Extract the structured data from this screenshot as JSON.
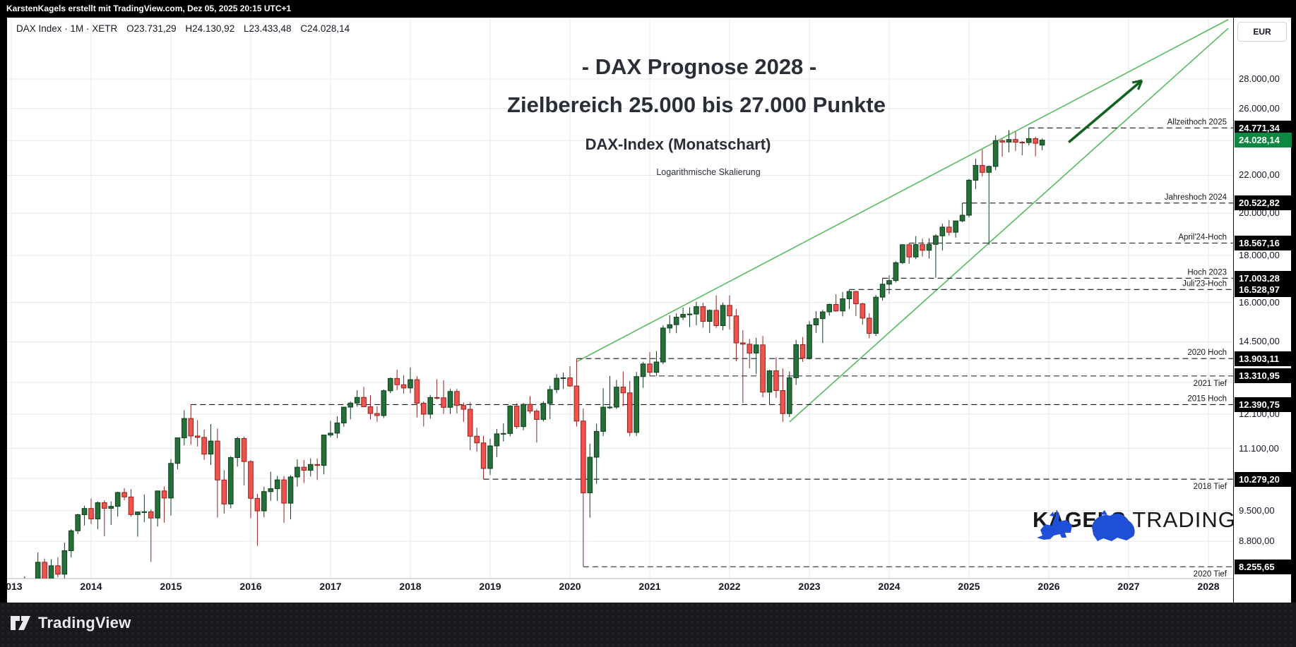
{
  "top_bar": {
    "attribution": "KarstenKagels erstellt mit TradingView.com, Dez 05, 2025 20:15 UTC+1"
  },
  "legend": {
    "symbol_line": "DAX Index · 1M · XETR",
    "open": "O23.731,29",
    "high": "H24.130,92",
    "low": "L23.433,48",
    "close": "C24.028,14"
  },
  "titles": {
    "main": "- DAX Prognose 2028 -",
    "target": "Zielbereich 25.000 bis 27.000 Punkte",
    "instrument": "DAX-Index (Monatschart)",
    "scale_note": "Logarithmische Skalierung"
  },
  "watermark": {
    "brand_bold": "KAGELS",
    "brand_light": "TRADING",
    "logo_blue": "#1e4fd6"
  },
  "footer": {
    "brand": "TradingView"
  },
  "price_axis": {
    "currency": "EUR",
    "ticks": [
      {
        "label": "28.000,00",
        "price": 28000
      },
      {
        "label": "26.000,00",
        "price": 26000
      },
      {
        "label": "22.000,00",
        "price": 22000
      },
      {
        "label": "20.000,00",
        "price": 20000
      },
      {
        "label": "18.000,00",
        "price": 18000
      },
      {
        "label": "16.000,00",
        "price": 16000
      },
      {
        "label": "14.500,00",
        "price": 14500
      },
      {
        "label": "12.100,00",
        "price": 12100
      },
      {
        "label": "11.100,00",
        "price": 11100
      },
      {
        "label": "9.500,00",
        "price": 9500
      },
      {
        "label": "8.800,00",
        "price": 8800
      }
    ],
    "hidden_grid_prices": [
      24000,
      13100,
      10300
    ],
    "badges": [
      {
        "label": "24.771,34",
        "price": 24771.34,
        "type": "black"
      },
      {
        "label": "24.028,14",
        "price": 24028.14,
        "type": "green"
      },
      {
        "label": "20.522,82",
        "price": 20522.82,
        "type": "black"
      },
      {
        "label": "18.567,16",
        "price": 18567.16,
        "type": "black"
      },
      {
        "label": "17.003,28",
        "price": 17003.28,
        "type": "black"
      },
      {
        "label": "16.528,97",
        "price": 16528.97,
        "type": "black"
      },
      {
        "label": "13.903,11",
        "price": 13903.11,
        "type": "black"
      },
      {
        "label": "13.310,95",
        "price": 13310.95,
        "type": "black"
      },
      {
        "label": "12.390,75",
        "price": 12390.75,
        "type": "black"
      },
      {
        "label": "10.279,20",
        "price": 10279.2,
        "type": "black"
      },
      {
        "label": "8.255,65",
        "price": 8255.65,
        "type": "black"
      }
    ]
  },
  "x_axis": {
    "years": [
      "2013",
      "2014",
      "2015",
      "2016",
      "2017",
      "2018",
      "2019",
      "2020",
      "2021",
      "2022",
      "2023",
      "2024",
      "2025",
      "2026",
      "2027",
      "2028"
    ]
  },
  "colors": {
    "up": "#256f38",
    "up_border": "#103c1e",
    "down": "#f0524d",
    "down_border": "#8e241f",
    "grid": "#e6e8ec",
    "level": "#15171c",
    "trendline": "#56bb5e",
    "arrow": "#12621f",
    "badge_black": "#000000",
    "badge_green": "#0d8742"
  },
  "chart_data": {
    "type": "candlestick",
    "title": "DAX Prognose 2028 - Zielbereich 25.000 bis 27.000 Punkte",
    "symbol": "DAX Index",
    "interval": "1M",
    "exchange": "XETR",
    "currency": "EUR",
    "scale": "logarithmic",
    "start_month": "2013-01",
    "visible_price_range": [
      8013,
      28600
    ],
    "last_bar_ohlc": {
      "open": 23731.29,
      "high": 24130.92,
      "low": 23433.48,
      "close": 24028.14
    },
    "candles": [
      [
        7612,
        7872,
        7418,
        7776
      ],
      [
        7776,
        7940,
        7610,
        7741
      ],
      [
        7741,
        8058,
        7590,
        7795
      ],
      [
        7795,
        7965,
        7420,
        7914
      ],
      [
        7914,
        8557,
        7860,
        8349
      ],
      [
        8349,
        8425,
        7655,
        7959
      ],
      [
        7959,
        8410,
        7806,
        8276
      ],
      [
        8276,
        8456,
        8042,
        8103
      ],
      [
        8103,
        8770,
        8021,
        8594
      ],
      [
        8594,
        9070,
        8450,
        9034
      ],
      [
        9034,
        9425,
        8960,
        9405
      ],
      [
        9405,
        9620,
        9155,
        9552
      ],
      [
        9552,
        9794,
        9189,
        9306
      ],
      [
        9306,
        9720,
        9070,
        9692
      ],
      [
        9692,
        9750,
        8910,
        9556
      ],
      [
        9556,
        9721,
        9166,
        9603
      ],
      [
        9603,
        9960,
        9361,
        9943
      ],
      [
        9943,
        10051,
        9752,
        9833
      ],
      [
        9833,
        10029,
        9361,
        9407
      ],
      [
        9407,
        9480,
        8903,
        9470
      ],
      [
        9470,
        9891,
        9234,
        9474
      ],
      [
        9474,
        9529,
        8355,
        9327
      ],
      [
        9327,
        9991,
        9130,
        9981
      ],
      [
        9981,
        10093,
        9220,
        9806
      ],
      [
        9806,
        10810,
        9383,
        10694
      ],
      [
        10694,
        11402,
        10538,
        11401
      ],
      [
        11401,
        12219,
        11189,
        11966
      ],
      [
        11966,
        12390,
        11205,
        11454
      ],
      [
        11454,
        11920,
        11158,
        11413
      ],
      [
        11413,
        11637,
        10789,
        10945
      ],
      [
        10945,
        11802,
        10653,
        11309
      ],
      [
        11309,
        11670,
        9338,
        10259
      ],
      [
        10259,
        10515,
        9428,
        9660
      ],
      [
        9660,
        10887,
        9556,
        10850
      ],
      [
        10850,
        11430,
        10610,
        11382
      ],
      [
        11382,
        11431,
        10123,
        10743
      ],
      [
        10743,
        10780,
        9325,
        9798
      ],
      [
        9798,
        9908,
        8699,
        9495
      ],
      [
        9495,
        10087,
        9347,
        9965
      ],
      [
        9965,
        10474,
        9738,
        10038
      ],
      [
        10038,
        10365,
        9737,
        10262
      ],
      [
        10262,
        10365,
        9214,
        9680
      ],
      [
        9680,
        10383,
        9295,
        10337
      ],
      [
        10337,
        10802,
        10092,
        10592
      ],
      [
        10592,
        10786,
        10182,
        10511
      ],
      [
        10511,
        10830,
        10349,
        10665
      ],
      [
        10665,
        10827,
        10259,
        10640
      ],
      [
        10640,
        11490,
        10404,
        11481
      ],
      [
        11481,
        11893,
        11415,
        11535
      ],
      [
        11535,
        12031,
        11393,
        11834
      ],
      [
        11834,
        12313,
        11722,
        12312
      ],
      [
        12312,
        12486,
        11941,
        12438
      ],
      [
        12438,
        12842,
        12326,
        12615
      ],
      [
        12615,
        12952,
        12319,
        12325
      ],
      [
        12325,
        12676,
        11934,
        12118
      ],
      [
        12118,
        12336,
        11869,
        12055
      ],
      [
        12055,
        12871,
        11981,
        12828
      ],
      [
        12828,
        13255,
        12750,
        13229
      ],
      [
        13229,
        13525,
        12848,
        13023
      ],
      [
        13023,
        13338,
        12738,
        12917
      ],
      [
        12917,
        13596,
        12746,
        13189
      ],
      [
        13189,
        13302,
        12003,
        12435
      ],
      [
        12435,
        12489,
        11727,
        12096
      ],
      [
        12096,
        12696,
        11963,
        12612
      ],
      [
        12612,
        13204,
        12548,
        12604
      ],
      [
        12604,
        13170,
        12104,
        12306
      ],
      [
        12306,
        12886,
        12106,
        12805
      ],
      [
        12805,
        12887,
        12120,
        12364
      ],
      [
        12364,
        12458,
        11865,
        12246
      ],
      [
        12246,
        12462,
        11051,
        11447
      ],
      [
        11447,
        11689,
        11009,
        11257
      ],
      [
        11257,
        11457,
        10279,
        10559
      ],
      [
        10559,
        11371,
        10387,
        11173
      ],
      [
        11173,
        11658,
        10864,
        11515
      ],
      [
        11515,
        11823,
        11299,
        11526
      ],
      [
        11526,
        12375,
        11446,
        12344
      ],
      [
        12344,
        12436,
        11662,
        11726
      ],
      [
        11726,
        12439,
        11620,
        12398
      ],
      [
        12398,
        12656,
        12116,
        12189
      ],
      [
        12189,
        12254,
        11266,
        11939
      ],
      [
        11939,
        12495,
        11878,
        12428
      ],
      [
        12428,
        12987,
        11945,
        12866
      ],
      [
        12866,
        13374,
        12750,
        13236
      ],
      [
        13236,
        13429,
        12886,
        13249
      ],
      [
        13249,
        13640,
        12949,
        12981
      ],
      [
        12981,
        13903,
        11725,
        11890
      ],
      [
        11890,
        12272,
        8255,
        9935
      ],
      [
        9935,
        11235,
        9337,
        10861
      ],
      [
        10861,
        11813,
        10160,
        11586
      ],
      [
        11586,
        12913,
        11450,
        12310
      ],
      [
        12310,
        13314,
        12254,
        12313
      ],
      [
        12313,
        13180,
        12253,
        12945
      ],
      [
        12945,
        13460,
        12342,
        12760
      ],
      [
        12760,
        13149,
        11450,
        11556
      ],
      [
        11556,
        13445,
        11457,
        13291
      ],
      [
        13291,
        13790,
        12923,
        13718
      ],
      [
        13718,
        14131,
        13310,
        13432
      ],
      [
        13432,
        14169,
        13311,
        13786
      ],
      [
        13786,
        15107,
        13711,
        15008
      ],
      [
        15008,
        15501,
        14816,
        15135
      ],
      [
        15135,
        15568,
        14816,
        15421
      ],
      [
        15421,
        15802,
        15309,
        15531
      ],
      [
        15531,
        15810,
        15048,
        15544
      ],
      [
        15544,
        16030,
        15111,
        15835
      ],
      [
        15835,
        15989,
        15019,
        15260
      ],
      [
        15260,
        15727,
        14818,
        15688
      ],
      [
        15688,
        16290,
        15015,
        15100
      ],
      [
        15100,
        16000,
        14923,
        15884
      ],
      [
        15884,
        16285,
        14953,
        15471
      ],
      [
        15471,
        15737,
        13807,
        14461
      ],
      [
        14461,
        14925,
        12439,
        14414
      ],
      [
        14414,
        14603,
        13567,
        14097
      ],
      [
        14097,
        14640,
        13380,
        14388
      ],
      [
        14388,
        14709,
        12619,
        12783
      ],
      [
        12783,
        13516,
        12391,
        13484
      ],
      [
        13484,
        13948,
        12603,
        12834
      ],
      [
        12834,
        13564,
        11862,
        12114
      ],
      [
        12114,
        13460,
        12010,
        13253
      ],
      [
        13253,
        14572,
        13017,
        14397
      ],
      [
        14397,
        14676,
        13791,
        13923
      ],
      [
        13923,
        15270,
        13870,
        15128
      ],
      [
        15128,
        15658,
        14829,
        15365
      ],
      [
        15365,
        15706,
        14458,
        15628
      ],
      [
        15628,
        15962,
        15482,
        15922
      ],
      [
        15922,
        16332,
        15629,
        15664
      ],
      [
        15664,
        16427,
        15456,
        16147
      ],
      [
        16147,
        16528,
        15744,
        16446
      ],
      [
        16446,
        16478,
        15469,
        15947
      ],
      [
        15947,
        15990,
        15139,
        15386
      ],
      [
        15386,
        15575,
        14630,
        14810
      ],
      [
        14810,
        16300,
        14708,
        16215
      ],
      [
        16215,
        17003,
        16076,
        16751
      ],
      [
        16751,
        17130,
        16345,
        16903
      ],
      [
        16903,
        17742,
        16821,
        17678
      ],
      [
        17678,
        18513,
        17619,
        18492
      ],
      [
        18492,
        18567,
        17626,
        17932
      ],
      [
        17932,
        18893,
        17842,
        18497
      ],
      [
        18497,
        18772,
        17951,
        18235
      ],
      [
        18235,
        18795,
        17861,
        18508
      ],
      [
        18508,
        18991,
        17024,
        18906
      ],
      [
        18906,
        19491,
        18228,
        19324
      ],
      [
        19324,
        19675,
        18911,
        19077
      ],
      [
        19077,
        19640,
        18823,
        19626
      ],
      [
        19626,
        20522,
        19565,
        19909
      ],
      [
        19909,
        21800,
        19795,
        21732
      ],
      [
        21732,
        22935,
        21252,
        22551
      ],
      [
        22551,
        23476,
        21947,
        22163
      ],
      [
        22163,
        22545,
        18490,
        22496
      ],
      [
        22496,
        24326,
        22285,
        23997
      ],
      [
        23997,
        24100,
        23050,
        23909
      ],
      [
        23909,
        24639,
        23298,
        24065
      ],
      [
        24065,
        24549,
        23380,
        23902
      ],
      [
        23902,
        23970,
        23127,
        23880
      ],
      [
        23880,
        24771,
        23710,
        24118
      ],
      [
        24118,
        24236,
        23070,
        23836
      ],
      [
        23731,
        24130,
        23433,
        24028
      ]
    ],
    "levels": [
      {
        "label": "Allzeithoch 2025",
        "price": 24771.34,
        "start": "2025-10",
        "side": "above"
      },
      {
        "label": "Jahreshoch 2024",
        "price": 20522.82,
        "start": "2024-12",
        "side": "above"
      },
      {
        "label": "April'24-Hoch",
        "price": 18567.16,
        "start": "2024-04",
        "side": "above"
      },
      {
        "label": "Hoch 2023",
        "price": 17003.28,
        "start": "2023-12",
        "side": "above"
      },
      {
        "label": "Juli'23-Hoch",
        "price": 16528.97,
        "start": "2023-07",
        "side": "above"
      },
      {
        "label": "2020 Hoch",
        "price": 13903.11,
        "start": "2020-02",
        "side": "above"
      },
      {
        "label": "2021 Tief",
        "price": 13310.95,
        "start": "2021-01",
        "side": "below"
      },
      {
        "label": "2015 Hoch",
        "price": 12390.75,
        "start": "2015-04",
        "side": "above"
      },
      {
        "label": "2018 Tief",
        "price": 10279.2,
        "start": "2018-12",
        "side": "below"
      },
      {
        "label": "2020 Tief",
        "price": 8255.65,
        "start": "2020-03",
        "side": "below"
      }
    ],
    "annotations": {
      "trendlines": [
        {
          "name": "upper-wedge-line",
          "from": {
            "month": "2020-02",
            "price": 13795
          },
          "to": {
            "month": "2028-04",
            "price": 32500
          }
        },
        {
          "name": "lower-wedge-line",
          "from": {
            "month": "2022-10",
            "price": 11862
          },
          "to": {
            "month": "2028-04",
            "price": 31800
          }
        }
      ],
      "arrow": {
        "name": "forecast-arrow",
        "from": {
          "month": "2026-04",
          "price": 23900
        },
        "to": {
          "month": "2027-03",
          "price": 27900
        }
      }
    },
    "legend_position": "none",
    "grid": true
  }
}
